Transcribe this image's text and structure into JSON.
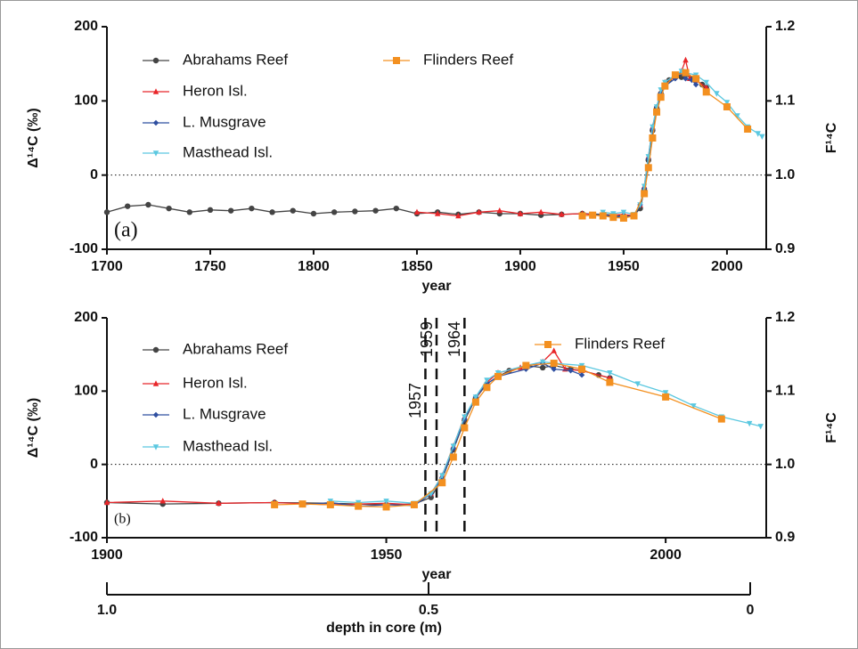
{
  "chart_data": [
    {
      "type": "line",
      "annotation": "(a)",
      "xlabel": "year",
      "ylabel": "Δ¹⁴C (‰)",
      "y2label": "F¹⁴C",
      "xlim": [
        1700,
        2019
      ],
      "xticks": [
        1700,
        1750,
        1800,
        1850,
        1900,
        1950,
        2000
      ],
      "ylim": [
        -100,
        200
      ],
      "yticks": [
        -100,
        0,
        100,
        200
      ],
      "y2lim": [
        0.9,
        1.2
      ],
      "y2ticks": [
        0.9,
        {
          "value": 1,
          "label": "1.0"
        },
        1.1,
        1.2
      ],
      "zero_line": true,
      "series": [
        {
          "name": "Abrahams Reef",
          "color": "#444444",
          "marker": "circle",
          "x": [
            1700,
            1710,
            1720,
            1730,
            1740,
            1750,
            1760,
            1770,
            1780,
            1790,
            1800,
            1810,
            1820,
            1830,
            1840,
            1850,
            1860,
            1870,
            1880,
            1890,
            1900,
            1910,
            1920,
            1930,
            1940,
            1950,
            1955,
            1958,
            1960,
            1962,
            1964,
            1966,
            1968,
            1970,
            1972,
            1975,
            1978,
            1980,
            1983,
            1985,
            1988,
            1990
          ],
          "values": [
            -50,
            -42,
            -40,
            -45,
            -50,
            -47,
            -48,
            -45,
            -50,
            -48,
            -52,
            -50,
            -49,
            -48,
            -45,
            -52,
            -50,
            -53,
            -50,
            -52,
            -52,
            -54,
            -53,
            -52,
            -53,
            -55,
            -54,
            -45,
            -20,
            20,
            60,
            90,
            110,
            120,
            128,
            135,
            132,
            135,
            130,
            128,
            122,
            118
          ]
        },
        {
          "name": "Heron Isl.",
          "color": "#e8262a",
          "marker": "triangle",
          "x": [
            1850,
            1860,
            1870,
            1880,
            1890,
            1900,
            1910,
            1920,
            1930,
            1940,
            1950,
            1955,
            1958,
            1960,
            1962,
            1964,
            1966,
            1968,
            1970,
            1974,
            1978,
            1980,
            1982,
            1985,
            1990
          ],
          "values": [
            -50,
            -52,
            -55,
            -50,
            -48,
            -52,
            -50,
            -53,
            -52,
            -55,
            -53,
            -55,
            -40,
            -15,
            25,
            65,
            90,
            112,
            125,
            132,
            140,
            155,
            130,
            128,
            118
          ]
        },
        {
          "name": "L. Musgrave",
          "color": "#2f4fa0",
          "marker": "diamond",
          "x": [
            1935,
            1940,
            1945,
            1950,
            1955,
            1958,
            1960,
            1962,
            1964,
            1966,
            1968,
            1970,
            1975,
            1978,
            1980,
            1983,
            1985
          ],
          "values": [
            -55,
            -52,
            -57,
            -55,
            -56,
            -40,
            -18,
            22,
            62,
            92,
            110,
            120,
            130,
            138,
            130,
            128,
            122
          ]
        },
        {
          "name": "Masthead Isl.",
          "color": "#5bc8e0",
          "marker": "triangle-down",
          "x": [
            1940,
            1945,
            1950,
            1955,
            1958,
            1960,
            1962,
            1964,
            1966,
            1968,
            1970,
            1975,
            1978,
            1980,
            1985,
            1990,
            1995,
            2000,
            2005,
            2010,
            2015,
            2017
          ],
          "values": [
            -50,
            -52,
            -50,
            -53,
            -40,
            -15,
            25,
            65,
            92,
            115,
            125,
            135,
            140,
            138,
            135,
            125,
            110,
            98,
            80,
            65,
            56,
            52
          ]
        },
        {
          "name": "Flinders Reef",
          "color": "#f39020",
          "marker": "square",
          "x": [
            1930,
            1935,
            1940,
            1945,
            1950,
            1955,
            1960,
            1962,
            1964,
            1966,
            1968,
            1970,
            1975,
            1980,
            1985,
            1990,
            2000,
            2010
          ],
          "values": [
            -55,
            -54,
            -55,
            -57,
            -58,
            -55,
            -25,
            10,
            50,
            85,
            105,
            120,
            135,
            138,
            130,
            112,
            92,
            62
          ]
        }
      ]
    },
    {
      "type": "line",
      "annotation": "(b)",
      "xlabel": "year",
      "ylabel": "Δ¹⁴C (‰)",
      "y2label": "F¹⁴C",
      "xlim": [
        1900,
        2018
      ],
      "xticks": [
        1900,
        1950,
        2000
      ],
      "ylim": [
        -100,
        200
      ],
      "yticks": [
        -100,
        0,
        100,
        200
      ],
      "y2lim": [
        0.9,
        1.2
      ],
      "y2ticks": [
        0.9,
        {
          "value": 1,
          "label": "1.0"
        },
        1.1,
        1.2
      ],
      "zero_line": true,
      "vlines": [
        1957,
        1959,
        1964
      ],
      "x2label": "depth in core (m)",
      "x2lim": [
        1,
        0
      ],
      "x2ticks": [
        {
          "value": 1,
          "label": "1.0"
        },
        0.5,
        0
      ],
      "series": [
        {
          "name": "Abrahams Reef",
          "color": "#444444",
          "marker": "circle",
          "x": [
            1900,
            1910,
            1920,
            1930,
            1940,
            1950,
            1955,
            1958,
            1960,
            1962,
            1964,
            1966,
            1968,
            1970,
            1972,
            1975,
            1978,
            1980,
            1983,
            1985,
            1988,
            1990
          ],
          "values": [
            -52,
            -54,
            -53,
            -52,
            -53,
            -55,
            -54,
            -45,
            -20,
            20,
            60,
            90,
            110,
            120,
            128,
            135,
            132,
            135,
            130,
            128,
            122,
            118
          ]
        },
        {
          "name": "Heron Isl.",
          "color": "#e8262a",
          "marker": "triangle",
          "x": [
            1900,
            1910,
            1920,
            1930,
            1940,
            1950,
            1955,
            1958,
            1960,
            1962,
            1964,
            1966,
            1968,
            1970,
            1974,
            1978,
            1980,
            1982,
            1985,
            1990
          ],
          "values": [
            -52,
            -50,
            -53,
            -52,
            -55,
            -53,
            -55,
            -40,
            -15,
            25,
            65,
            90,
            112,
            125,
            132,
            140,
            155,
            130,
            128,
            118
          ]
        },
        {
          "name": "L. Musgrave",
          "color": "#2f4fa0",
          "marker": "diamond",
          "x": [
            1935,
            1940,
            1945,
            1950,
            1955,
            1958,
            1960,
            1962,
            1964,
            1966,
            1968,
            1970,
            1975,
            1978,
            1980,
            1983,
            1985
          ],
          "values": [
            -55,
            -52,
            -57,
            -55,
            -56,
            -40,
            -18,
            22,
            62,
            92,
            110,
            120,
            130,
            138,
            130,
            128,
            122
          ]
        },
        {
          "name": "Masthead Isl.",
          "color": "#5bc8e0",
          "marker": "triangle-down",
          "x": [
            1940,
            1945,
            1950,
            1955,
            1958,
            1960,
            1962,
            1964,
            1966,
            1968,
            1970,
            1975,
            1978,
            1980,
            1985,
            1990,
            1995,
            2000,
            2005,
            2010,
            2015,
            2017
          ],
          "values": [
            -50,
            -52,
            -50,
            -53,
            -40,
            -15,
            25,
            65,
            92,
            115,
            125,
            135,
            140,
            138,
            135,
            125,
            110,
            98,
            80,
            65,
            56,
            52
          ]
        },
        {
          "name": "Flinders Reef",
          "color": "#f39020",
          "marker": "square",
          "x": [
            1930,
            1935,
            1940,
            1945,
            1950,
            1955,
            1960,
            1962,
            1964,
            1966,
            1968,
            1970,
            1975,
            1980,
            1985,
            1990,
            2000,
            2010
          ],
          "values": [
            -55,
            -54,
            -55,
            -57,
            -58,
            -55,
            -25,
            10,
            50,
            85,
            105,
            120,
            135,
            138,
            130,
            112,
            92,
            62
          ]
        }
      ]
    }
  ]
}
